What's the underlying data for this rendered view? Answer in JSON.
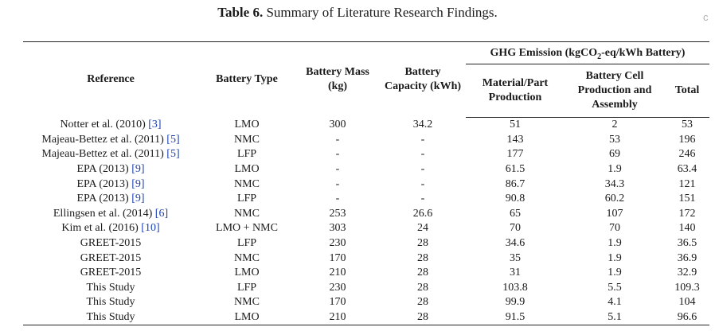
{
  "caption": {
    "label": "Table 6.",
    "text": "Summary of Literature Research Findings."
  },
  "edge_glyph": "c",
  "headers": {
    "reference": "Reference",
    "battery_type": "Battery Type",
    "battery_mass": "Battery Mass (kg)",
    "battery_capacity": "Battery Capacity (kWh)",
    "ghg_prefix": "GHG Emission (kgCO",
    "ghg_sub": "2",
    "ghg_suffix": "-eq/kWh Battery)",
    "material": "Material/Part Production",
    "cell": "Battery Cell Production and Assembly",
    "total": "Total"
  },
  "rows": [
    {
      "ref": "Notter et al. (2010)",
      "cite": "[3]",
      "type": "LMO",
      "mass": "300",
      "capacity": "34.2",
      "material": "51",
      "cell": "2",
      "total": "53"
    },
    {
      "ref": "Majeau-Bettez et al. (2011)",
      "cite": "[5]",
      "type": "NMC",
      "mass": "-",
      "capacity": "-",
      "material": "143",
      "cell": "53",
      "total": "196"
    },
    {
      "ref": "Majeau-Bettez et al. (2011)",
      "cite": "[5]",
      "type": "LFP",
      "mass": "-",
      "capacity": "-",
      "material": "177",
      "cell": "69",
      "total": "246"
    },
    {
      "ref": "EPA (2013)",
      "cite": "[9]",
      "type": "LMO",
      "mass": "-",
      "capacity": "-",
      "material": "61.5",
      "cell": "1.9",
      "total": "63.4"
    },
    {
      "ref": "EPA (2013)",
      "cite": "[9]",
      "type": "NMC",
      "mass": "-",
      "capacity": "-",
      "material": "86.7",
      "cell": "34.3",
      "total": "121"
    },
    {
      "ref": "EPA (2013)",
      "cite": "[9]",
      "type": "LFP",
      "mass": "-",
      "capacity": "-",
      "material": "90.8",
      "cell": "60.2",
      "total": "151"
    },
    {
      "ref": "Ellingsen et al. (2014)",
      "cite": "[6]",
      "type": "NMC",
      "mass": "253",
      "capacity": "26.6",
      "material": "65",
      "cell": "107",
      "total": "172"
    },
    {
      "ref": "Kim et al. (2016)",
      "cite": "[10]",
      "type": "LMO + NMC",
      "mass": "303",
      "capacity": "24",
      "material": "70",
      "cell": "70",
      "total": "140"
    },
    {
      "ref": "GREET-2015",
      "cite": "",
      "type": "LFP",
      "mass": "230",
      "capacity": "28",
      "material": "34.6",
      "cell": "1.9",
      "total": "36.5"
    },
    {
      "ref": "GREET-2015",
      "cite": "",
      "type": "NMC",
      "mass": "170",
      "capacity": "28",
      "material": "35",
      "cell": "1.9",
      "total": "36.9"
    },
    {
      "ref": "GREET-2015",
      "cite": "",
      "type": "LMO",
      "mass": "210",
      "capacity": "28",
      "material": "31",
      "cell": "1.9",
      "total": "32.9"
    },
    {
      "ref": "This Study",
      "cite": "",
      "type": "LFP",
      "mass": "230",
      "capacity": "28",
      "material": "103.8",
      "cell": "5.5",
      "total": "109.3"
    },
    {
      "ref": "This Study",
      "cite": "",
      "type": "NMC",
      "mass": "170",
      "capacity": "28",
      "material": "99.9",
      "cell": "4.1",
      "total": "104"
    },
    {
      "ref": "This Study",
      "cite": "",
      "type": "LMO",
      "mass": "210",
      "capacity": "28",
      "material": "91.5",
      "cell": "5.1",
      "total": "96.6"
    }
  ]
}
